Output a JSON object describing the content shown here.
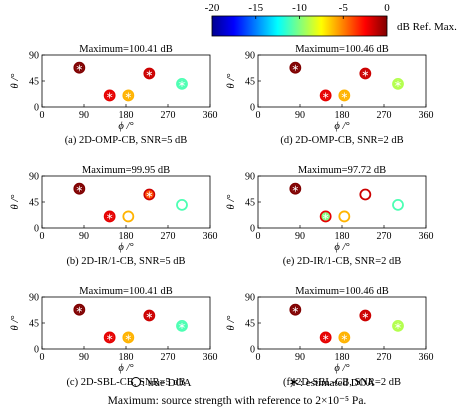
{
  "colorbar": {
    "ticks": [
      "-20",
      "-15",
      "-10",
      "-5",
      "0"
    ],
    "tick_values": [
      -20,
      -15,
      -10,
      -5,
      0
    ],
    "label": "dB Ref. Max.",
    "colormap": [
      "#00008f",
      "#0000ff",
      "#0080ff",
      "#00ffff",
      "#80ff80",
      "#ffff00",
      "#ff8000",
      "#ff0000",
      "#800000"
    ]
  },
  "chart_data": [
    {
      "type": "scatter",
      "title": "Maximum=100.41 dB",
      "caption": "(a) 2D-OMP-CB, SNR=5 dB",
      "xlabel": "ϕ /°",
      "ylabel": "θ /°",
      "xlim": [
        0,
        360
      ],
      "ylim": [
        0,
        90
      ],
      "xticks": [
        "0",
        "90",
        "180",
        "270",
        "360"
      ],
      "yticks": [
        "0",
        "45",
        "90"
      ],
      "true_doa": [
        {
          "phi": 80,
          "theta": 68,
          "level_db": 0
        },
        {
          "phi": 145,
          "theta": 20,
          "level_db": -2
        },
        {
          "phi": 185,
          "theta": 20,
          "level_db": -6
        },
        {
          "phi": 230,
          "theta": 58,
          "level_db": -1.5
        },
        {
          "phi": 300,
          "theta": 40,
          "level_db": -11
        }
      ],
      "estimated_doa": [
        {
          "phi": 80,
          "theta": 68,
          "level_db": 0
        },
        {
          "phi": 145,
          "theta": 20,
          "level_db": -2
        },
        {
          "phi": 185,
          "theta": 20,
          "level_db": -6
        },
        {
          "phi": 230,
          "theta": 58,
          "level_db": -1.5
        },
        {
          "phi": 300,
          "theta": 40,
          "level_db": -11
        }
      ]
    },
    {
      "type": "scatter",
      "title": "Maximum=100.46 dB",
      "caption": "(d) 2D-OMP-CB, SNR=2 dB",
      "xlabel": "ϕ /°",
      "ylabel": "θ /°",
      "xlim": [
        0,
        360
      ],
      "ylim": [
        0,
        90
      ],
      "xticks": [
        "0",
        "90",
        "180",
        "270",
        "360"
      ],
      "yticks": [
        "0",
        "45",
        "90"
      ],
      "true_doa": [
        {
          "phi": 80,
          "theta": 68,
          "level_db": 0
        },
        {
          "phi": 145,
          "theta": 20,
          "level_db": -2
        },
        {
          "phi": 185,
          "theta": 20,
          "level_db": -6
        },
        {
          "phi": 230,
          "theta": 58,
          "level_db": -1.5
        },
        {
          "phi": 300,
          "theta": 40,
          "level_db": -9
        }
      ],
      "estimated_doa": [
        {
          "phi": 80,
          "theta": 68,
          "level_db": 0
        },
        {
          "phi": 145,
          "theta": 20,
          "level_db": -2
        },
        {
          "phi": 185,
          "theta": 20,
          "level_db": -6
        },
        {
          "phi": 230,
          "theta": 58,
          "level_db": -1.5
        },
        {
          "phi": 300,
          "theta": 40,
          "level_db": -9
        }
      ]
    },
    {
      "type": "scatter",
      "title": "Maximum=99.95 dB",
      "caption": "(b) 2D-IR/1-CB, SNR=5 dB",
      "xlabel": "ϕ /°",
      "ylabel": "θ /°",
      "xlim": [
        0,
        360
      ],
      "ylim": [
        0,
        90
      ],
      "xticks": [
        "0",
        "90",
        "180",
        "270",
        "360"
      ],
      "yticks": [
        "0",
        "45",
        "90"
      ],
      "true_doa": [
        {
          "phi": 80,
          "theta": 68,
          "level_db": 0
        },
        {
          "phi": 145,
          "theta": 20,
          "level_db": -2
        },
        {
          "phi": 185,
          "theta": 20,
          "level_db": -6
        },
        {
          "phi": 230,
          "theta": 58,
          "level_db": -1.5
        },
        {
          "phi": 300,
          "theta": 40,
          "level_db": -11
        }
      ],
      "estimated_doa": [
        {
          "phi": 80,
          "theta": 68,
          "level_db": 0
        },
        {
          "phi": 145,
          "theta": 20,
          "level_db": -2
        },
        {
          "phi": 230,
          "theta": 58,
          "level_db": -4
        }
      ]
    },
    {
      "type": "scatter",
      "title": "Maximum=97.72 dB",
      "caption": "(e) 2D-IR/1-CB, SNR=2 dB",
      "xlabel": "ϕ /°",
      "ylabel": "θ /°",
      "xlim": [
        0,
        360
      ],
      "ylim": [
        0,
        90
      ],
      "xticks": [
        "0",
        "90",
        "180",
        "270",
        "360"
      ],
      "yticks": [
        "0",
        "45",
        "90"
      ],
      "true_doa": [
        {
          "phi": 80,
          "theta": 68,
          "level_db": 0
        },
        {
          "phi": 145,
          "theta": 20,
          "level_db": -2
        },
        {
          "phi": 185,
          "theta": 20,
          "level_db": -6
        },
        {
          "phi": 230,
          "theta": 58,
          "level_db": -1.5
        },
        {
          "phi": 300,
          "theta": 40,
          "level_db": -11
        }
      ],
      "estimated_doa": [
        {
          "phi": 80,
          "theta": 68,
          "level_db": 0
        },
        {
          "phi": 145,
          "theta": 20,
          "level_db": -10
        }
      ]
    },
    {
      "type": "scatter",
      "title": "Maximum=100.41 dB",
      "caption": "(c) 2D-SBL-CB, SNR=5 dB",
      "xlabel": "ϕ /°",
      "ylabel": "θ /°",
      "xlim": [
        0,
        360
      ],
      "ylim": [
        0,
        90
      ],
      "xticks": [
        "0",
        "90",
        "180",
        "270",
        "360"
      ],
      "yticks": [
        "0",
        "45",
        "90"
      ],
      "true_doa": [
        {
          "phi": 80,
          "theta": 68,
          "level_db": 0
        },
        {
          "phi": 145,
          "theta": 20,
          "level_db": -2
        },
        {
          "phi": 185,
          "theta": 20,
          "level_db": -6
        },
        {
          "phi": 230,
          "theta": 58,
          "level_db": -1.5
        },
        {
          "phi": 300,
          "theta": 40,
          "level_db": -11
        }
      ],
      "estimated_doa": [
        {
          "phi": 80,
          "theta": 68,
          "level_db": 0
        },
        {
          "phi": 145,
          "theta": 20,
          "level_db": -2
        },
        {
          "phi": 185,
          "theta": 20,
          "level_db": -6
        },
        {
          "phi": 230,
          "theta": 58,
          "level_db": -1.5
        },
        {
          "phi": 300,
          "theta": 40,
          "level_db": -11
        }
      ]
    },
    {
      "type": "scatter",
      "title": "Maximum=100.46 dB",
      "caption": "(f) 2D-SBL-CB, SNR=2 dB",
      "xlabel": "ϕ /°",
      "ylabel": "θ /°",
      "xlim": [
        0,
        360
      ],
      "ylim": [
        0,
        90
      ],
      "xticks": [
        "0",
        "90",
        "180",
        "270",
        "360"
      ],
      "yticks": [
        "0",
        "45",
        "90"
      ],
      "true_doa": [
        {
          "phi": 80,
          "theta": 68,
          "level_db": 0
        },
        {
          "phi": 145,
          "theta": 20,
          "level_db": -2
        },
        {
          "phi": 185,
          "theta": 20,
          "level_db": -6
        },
        {
          "phi": 230,
          "theta": 58,
          "level_db": -1.5
        },
        {
          "phi": 300,
          "theta": 40,
          "level_db": -9
        }
      ],
      "estimated_doa": [
        {
          "phi": 80,
          "theta": 68,
          "level_db": 0
        },
        {
          "phi": 145,
          "theta": 20,
          "level_db": -2
        },
        {
          "phi": 185,
          "theta": 20,
          "level_db": -6
        },
        {
          "phi": 230,
          "theta": 58,
          "level_db": -1.5
        },
        {
          "phi": 300,
          "theta": 40,
          "level_db": -9
        }
      ]
    }
  ],
  "legend": {
    "true_doa_label": ": true DOA",
    "estimated_doa_label": ": estimated  DOA"
  },
  "footer": {
    "text": "Maximum: source strength with reference to 2×10⁻⁵ Pa."
  }
}
